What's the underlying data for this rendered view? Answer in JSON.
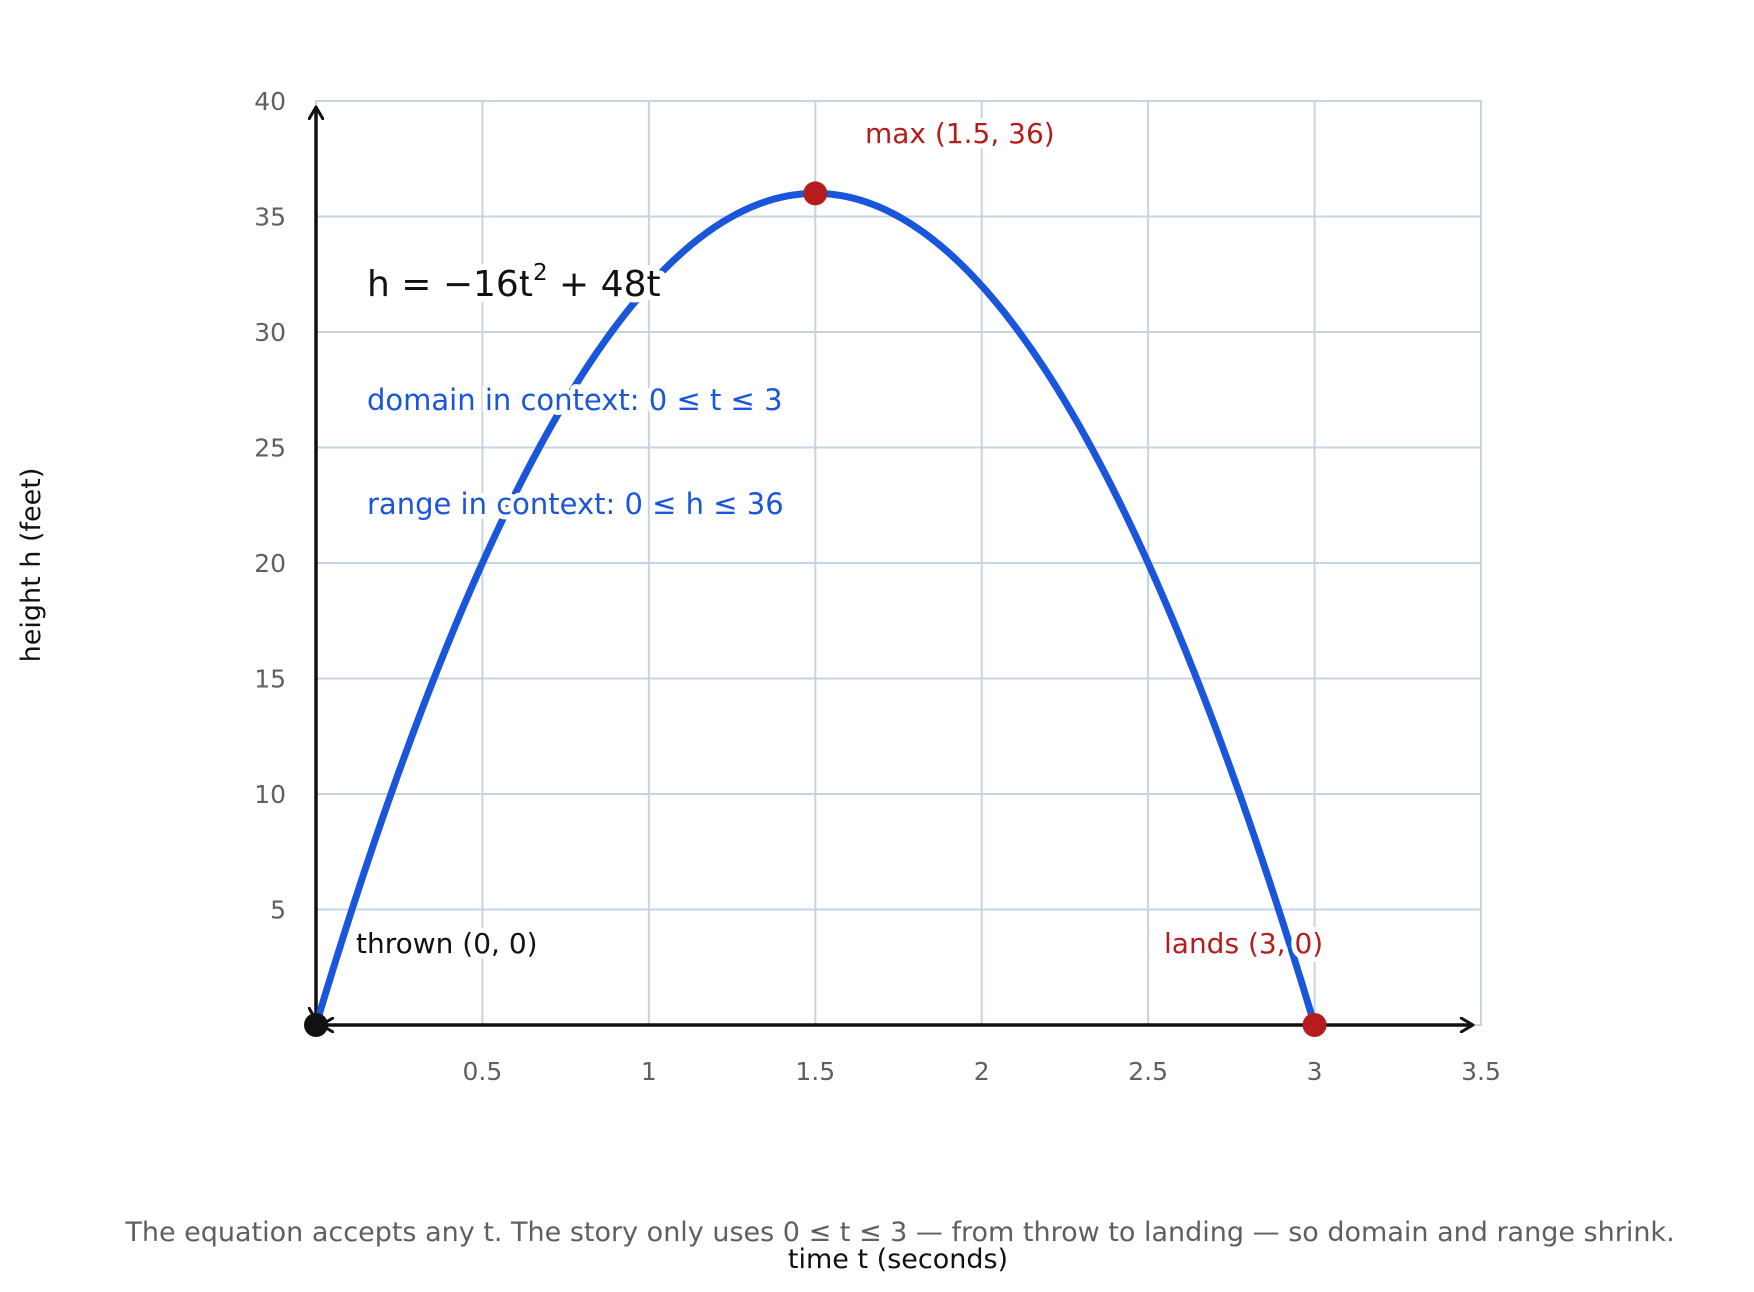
{
  "chart_data": {
    "type": "line",
    "equation": {
      "lhs": "h = −16t",
      "exponent": "2",
      "rhs": " + 48t",
      "a": -16,
      "b": 48,
      "c": 0
    },
    "xlabel": "time t (seconds)",
    "ylabel": "height h (feet)",
    "xlim": [
      0,
      3.5
    ],
    "ylim": [
      0,
      40
    ],
    "x_ticks": [
      0.5,
      1,
      1.5,
      2,
      2.5,
      3,
      3.5
    ],
    "x_tick_labels": [
      "0.5",
      "1",
      "1.5",
      "2",
      "2.5",
      "3",
      "3.5"
    ],
    "y_ticks": [
      5,
      10,
      15,
      20,
      25,
      30,
      35,
      40
    ],
    "y_tick_labels": [
      "5",
      "10",
      "15",
      "20",
      "25",
      "30",
      "35",
      "40"
    ],
    "grid": true,
    "series": [
      {
        "x_range": [
          0,
          3
        ],
        "color": "#1a56db"
      }
    ],
    "points": [
      {
        "x": 0,
        "y": 0,
        "label": "thrown (0, 0)",
        "color": "#111111"
      },
      {
        "x": 1.5,
        "y": 36,
        "label": "max (1.5, 36)",
        "color": "#b71c1c"
      },
      {
        "x": 3,
        "y": 0,
        "label": "lands (3, 0)",
        "color": "#b71c1c"
      }
    ],
    "annotations": {
      "domain": "domain in context: 0 ≤ t ≤ 3",
      "range": "range in context: 0 ≤ h ≤ 36"
    },
    "caption": "The equation accepts any t. The story only uses 0 ≤ t ≤ 3 — from throw to landing — so domain and range shrink."
  },
  "colors": {
    "curve": "#1a56db",
    "highlight": "#b71c1c",
    "axis": "#111111",
    "grid": "#c5d3e3"
  }
}
